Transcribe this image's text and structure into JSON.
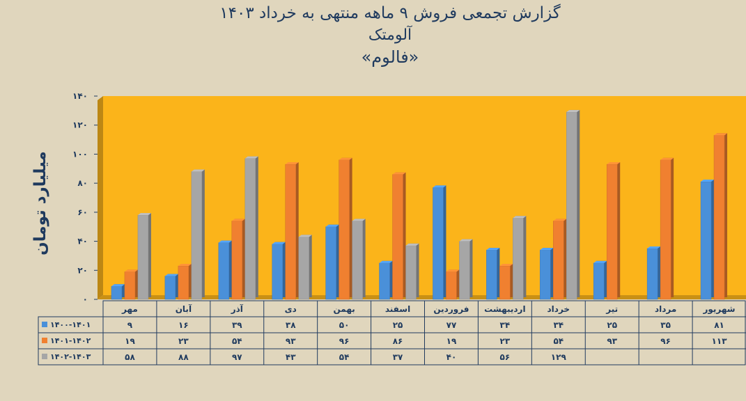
{
  "chart_data": {
    "type": "bar",
    "title": "گزارش تجمعی فروش ۹ ماهه منتهی به خرداد ۱۴۰۳",
    "subtitle_1": "آلومتک",
    "subtitle_2": "«فالوم»",
    "ylabel": "میلیارد تومان",
    "ylim": [
      0,
      140
    ],
    "yticks": [
      0,
      20,
      40,
      60,
      80,
      100,
      120,
      140
    ],
    "ytick_labels": [
      "۰",
      "۲۰",
      "۴۰",
      "۶۰",
      "۸۰",
      "۱۰۰",
      "۱۲۰",
      "۱۴۰"
    ],
    "categories": [
      "مهر",
      "آبان",
      "آذر",
      "دی",
      "بهمن",
      "اسفند",
      "فروردین",
      "اردیبهشت",
      "خرداد",
      "تیر",
      "مرداد",
      "شهریور"
    ],
    "series": [
      {
        "name": "۱۴۰۰-۱۴۰۱",
        "color": "#4a90d9",
        "values": [
          9,
          16,
          39,
          38,
          50,
          25,
          77,
          34,
          34,
          25,
          35,
          81
        ],
        "labels": [
          "۹",
          "۱۶",
          "۳۹",
          "۳۸",
          "۵۰",
          "۲۵",
          "۷۷",
          "۳۴",
          "۳۴",
          "۲۵",
          "۳۵",
          "۸۱"
        ]
      },
      {
        "name": "۱۴۰۱-۱۴۰۲",
        "color": "#f08030",
        "values": [
          19,
          23,
          54,
          93,
          96,
          86,
          19,
          23,
          54,
          93,
          96,
          113
        ],
        "labels": [
          "۱۹",
          "۲۳",
          "۵۴",
          "۹۳",
          "۹۶",
          "۸۶",
          "۱۹",
          "۲۳",
          "۵۴",
          "۹۳",
          "۹۶",
          "۱۱۳"
        ]
      },
      {
        "name": "۱۴۰۲-۱۴۰۳",
        "color": "#a6a6a6",
        "values": [
          58,
          88,
          97,
          43,
          54,
          37,
          40,
          56,
          129,
          null,
          null,
          null
        ],
        "labels": [
          "۵۸",
          "۸۸",
          "۹۷",
          "۴۳",
          "۵۴",
          "۳۷",
          "۴۰",
          "۵۶",
          "۱۲۹",
          "",
          "",
          ""
        ]
      }
    ],
    "plot_background": "#fbb41a",
    "grid": false,
    "legend": "data-table"
  }
}
